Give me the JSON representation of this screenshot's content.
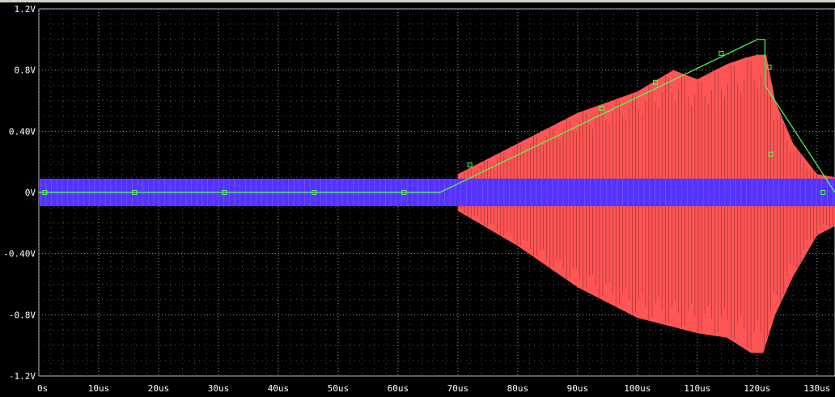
{
  "chart_data": {
    "type": "line",
    "background": "#000000",
    "grid": "dotted",
    "xlim": [
      0,
      133
    ],
    "ylim": [
      -1.2,
      1.2
    ],
    "x_unit": "us",
    "y_ticks": [
      "1.2V",
      "0.8V",
      "0.40V",
      "0V",
      "-0.40V",
      "-0.8V",
      "-1.2V"
    ],
    "x_ticks": [
      "0s",
      "10us",
      "20us",
      "30us",
      "40us",
      "50us",
      "60us",
      "70us",
      "80us",
      "90us",
      "100us",
      "110us",
      "120us",
      "130us"
    ],
    "series": [
      {
        "color": "#ff5555",
        "kind": "oscillation envelope",
        "envelope_pos": [
          [
            67,
            0.05
          ],
          [
            70,
            0.12
          ],
          [
            80,
            0.32
          ],
          [
            90,
            0.52
          ],
          [
            100,
            0.66
          ],
          [
            106,
            0.8
          ],
          [
            110,
            0.74
          ],
          [
            115,
            0.84
          ],
          [
            118,
            0.88
          ],
          [
            120,
            0.9
          ],
          [
            121.5,
            0.9
          ],
          [
            123,
            0.6
          ],
          [
            126,
            0.32
          ],
          [
            130,
            0.12
          ],
          [
            133,
            0.1
          ]
        ],
        "envelope_neg": [
          [
            70,
            -0.12
          ],
          [
            80,
            -0.35
          ],
          [
            90,
            -0.62
          ],
          [
            100,
            -0.82
          ],
          [
            110,
            -0.92
          ],
          [
            115,
            -0.95
          ],
          [
            119,
            -1.05
          ],
          [
            121,
            -1.05
          ],
          [
            123,
            -0.8
          ],
          [
            126,
            -0.55
          ],
          [
            130,
            -0.28
          ],
          [
            133,
            -0.22
          ]
        ]
      },
      {
        "color": "#5533ff",
        "kind": "oscillation band",
        "band": [
          -0.09,
          0.09
        ],
        "x_range": [
          0,
          133
        ]
      },
      {
        "color": "#55ff55",
        "kind": "ramp",
        "points": [
          [
            0,
            0
          ],
          [
            67,
            0
          ],
          [
            120,
            1.0
          ],
          [
            121.3,
            1.0
          ],
          [
            121.3,
            0.7
          ],
          [
            133,
            0.0
          ]
        ]
      }
    ]
  }
}
